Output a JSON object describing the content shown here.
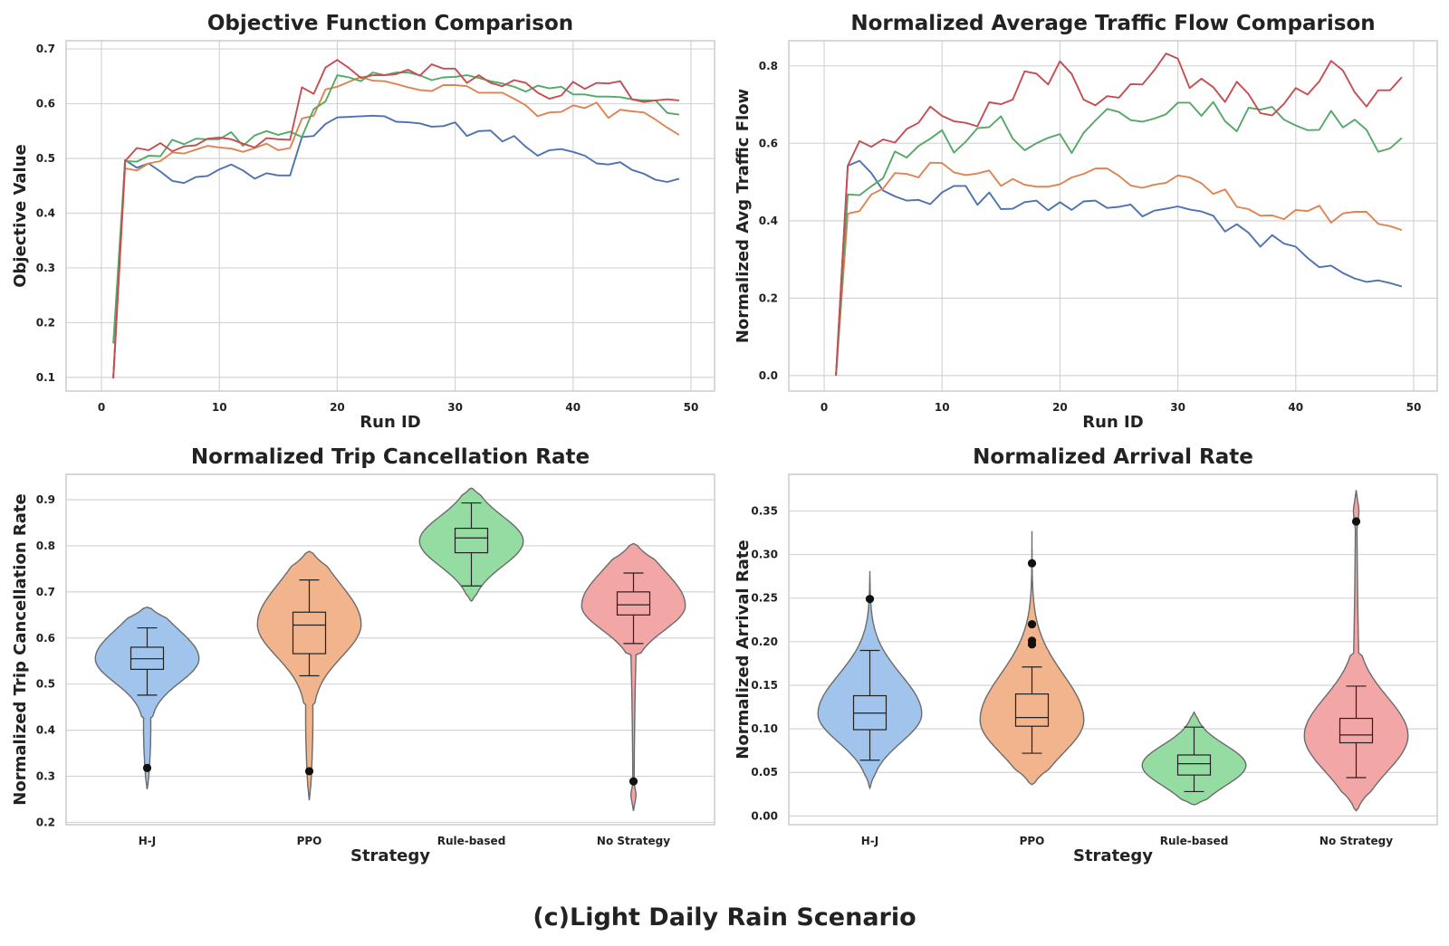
{
  "figure_caption": "(c)Light Daily Rain Scenario",
  "colors": {
    "line": [
      "#4c72b0",
      "#dd8452",
      "#55a868",
      "#c44e52"
    ],
    "violin_fill": [
      "#a1c4ec",
      "#f2b48c",
      "#95dca3",
      "#f3a6a6"
    ],
    "violin_edge": "#6b6b6b",
    "box": "#222222",
    "outlier": "#111111"
  },
  "chart_data": [
    {
      "type": "line",
      "title": "Objective Function Comparison",
      "xlabel": "Run ID",
      "ylabel": "Objective Value",
      "xlim": [
        -3,
        52
      ],
      "ylim": [
        0.075,
        0.715
      ],
      "xticks": [
        "0",
        "10",
        "20",
        "30",
        "40",
        "50"
      ],
      "yticks": [
        "0.1",
        "0.2",
        "0.3",
        "0.4",
        "0.5",
        "0.6",
        "0.7"
      ],
      "grid": true,
      "x_start": 1,
      "series": [
        {
          "values": [
            0.098,
            0.497,
            0.483,
            0.491,
            0.476,
            0.459,
            0.455,
            0.466,
            0.468,
            0.48,
            0.489,
            0.478,
            0.463,
            0.473,
            0.469,
            0.469,
            0.539,
            0.541,
            0.563,
            0.575,
            0.576,
            0.577,
            0.578,
            0.577,
            0.567,
            0.566,
            0.564,
            0.558,
            0.559,
            0.566,
            0.541,
            0.55,
            0.551,
            0.531,
            0.541,
            0.521,
            0.505,
            0.515,
            0.517,
            0.512,
            0.505,
            0.491,
            0.489,
            0.493,
            0.479,
            0.472,
            0.461,
            0.457,
            0.463
          ]
        },
        {
          "values": [
            0.1,
            0.482,
            0.478,
            0.491,
            0.495,
            0.511,
            0.509,
            0.516,
            0.523,
            0.52,
            0.518,
            0.512,
            0.519,
            0.527,
            0.515,
            0.519,
            0.573,
            0.578,
            0.626,
            0.631,
            0.64,
            0.649,
            0.642,
            0.641,
            0.636,
            0.63,
            0.625,
            0.623,
            0.634,
            0.634,
            0.632,
            0.62,
            0.62,
            0.62,
            0.609,
            0.597,
            0.577,
            0.584,
            0.585,
            0.597,
            0.592,
            0.602,
            0.574,
            0.589,
            0.586,
            0.584,
            0.571,
            0.556,
            0.543
          ]
        },
        {
          "values": [
            0.162,
            0.495,
            0.494,
            0.505,
            0.504,
            0.534,
            0.526,
            0.536,
            0.535,
            0.535,
            0.548,
            0.523,
            0.542,
            0.55,
            0.543,
            0.549,
            0.539,
            0.59,
            0.604,
            0.652,
            0.648,
            0.641,
            0.657,
            0.652,
            0.657,
            0.657,
            0.652,
            0.643,
            0.648,
            0.649,
            0.652,
            0.647,
            0.641,
            0.637,
            0.631,
            0.622,
            0.633,
            0.628,
            0.631,
            0.617,
            0.617,
            0.613,
            0.613,
            0.612,
            0.608,
            0.606,
            0.606,
            0.583,
            0.58
          ]
        },
        {
          "values": [
            0.098,
            0.495,
            0.519,
            0.515,
            0.528,
            0.513,
            0.522,
            0.524,
            0.536,
            0.538,
            0.535,
            0.527,
            0.52,
            0.537,
            0.535,
            0.534,
            0.63,
            0.618,
            0.666,
            0.68,
            0.665,
            0.647,
            0.652,
            0.652,
            0.654,
            0.662,
            0.651,
            0.672,
            0.664,
            0.664,
            0.638,
            0.652,
            0.638,
            0.632,
            0.643,
            0.638,
            0.62,
            0.609,
            0.615,
            0.64,
            0.627,
            0.638,
            0.637,
            0.641,
            0.608,
            0.603,
            0.606,
            0.608,
            0.606
          ]
        }
      ]
    },
    {
      "type": "line",
      "title": "Normalized Average Traffic Flow Comparison",
      "xlabel": "Run ID",
      "ylabel": "Normalized Avg Traffic Flow",
      "xlim": [
        -3,
        52
      ],
      "ylim": [
        -0.04,
        0.865
      ],
      "xticks": [
        "0",
        "10",
        "20",
        "30",
        "40",
        "50"
      ],
      "yticks": [
        "0.0",
        "0.2",
        "0.4",
        "0.6",
        "0.8"
      ],
      "grid": true,
      "x_start": 1,
      "series": [
        {
          "values": [
            0.0,
            0.542,
            0.555,
            0.523,
            0.478,
            0.463,
            0.452,
            0.454,
            0.443,
            0.473,
            0.49,
            0.49,
            0.441,
            0.473,
            0.43,
            0.431,
            0.448,
            0.452,
            0.427,
            0.448,
            0.428,
            0.45,
            0.452,
            0.433,
            0.436,
            0.442,
            0.411,
            0.426,
            0.431,
            0.437,
            0.429,
            0.424,
            0.413,
            0.372,
            0.391,
            0.369,
            0.333,
            0.363,
            0.341,
            0.333,
            0.304,
            0.28,
            0.284,
            0.265,
            0.251,
            0.242,
            0.246,
            0.239,
            0.23
          ]
        },
        {
          "values": [
            0.0,
            0.418,
            0.425,
            0.468,
            0.483,
            0.523,
            0.521,
            0.512,
            0.55,
            0.549,
            0.525,
            0.518,
            0.522,
            0.53,
            0.49,
            0.508,
            0.493,
            0.488,
            0.488,
            0.494,
            0.512,
            0.521,
            0.535,
            0.535,
            0.516,
            0.491,
            0.485,
            0.493,
            0.498,
            0.517,
            0.512,
            0.497,
            0.469,
            0.481,
            0.436,
            0.43,
            0.413,
            0.414,
            0.404,
            0.428,
            0.425,
            0.439,
            0.395,
            0.419,
            0.423,
            0.423,
            0.392,
            0.386,
            0.376
          ]
        },
        {
          "values": [
            0.0,
            0.468,
            0.466,
            0.489,
            0.51,
            0.579,
            0.563,
            0.593,
            0.612,
            0.634,
            0.576,
            0.604,
            0.639,
            0.642,
            0.67,
            0.612,
            0.582,
            0.6,
            0.614,
            0.624,
            0.575,
            0.627,
            0.659,
            0.689,
            0.681,
            0.66,
            0.656,
            0.664,
            0.675,
            0.705,
            0.705,
            0.671,
            0.707,
            0.657,
            0.631,
            0.692,
            0.687,
            0.694,
            0.661,
            0.646,
            0.634,
            0.635,
            0.684,
            0.641,
            0.661,
            0.635,
            0.578,
            0.587,
            0.614
          ]
        },
        {
          "values": [
            0.0,
            0.542,
            0.606,
            0.591,
            0.61,
            0.602,
            0.637,
            0.653,
            0.695,
            0.671,
            0.657,
            0.653,
            0.644,
            0.706,
            0.701,
            0.713,
            0.786,
            0.78,
            0.752,
            0.812,
            0.779,
            0.713,
            0.698,
            0.722,
            0.718,
            0.753,
            0.752,
            0.789,
            0.832,
            0.819,
            0.743,
            0.767,
            0.745,
            0.707,
            0.759,
            0.727,
            0.678,
            0.672,
            0.702,
            0.743,
            0.726,
            0.76,
            0.813,
            0.788,
            0.732,
            0.695,
            0.737,
            0.737,
            0.771
          ]
        }
      ]
    },
    {
      "type": "violin",
      "title": "Normalized Trip Cancellation Rate",
      "xlabel": "Strategy",
      "ylabel": "Normalized Trip Cancellation Rate",
      "ylim": [
        0.195,
        0.955
      ],
      "yticks": [
        "0.2",
        "0.3",
        "0.4",
        "0.5",
        "0.6",
        "0.7",
        "0.8",
        "0.9"
      ],
      "categories": [
        "H-J",
        "PPO",
        "Rule-based",
        "No Strategy"
      ],
      "grid": true,
      "violins": [
        {
          "min": 0.272,
          "max": 0.667,
          "mode": 0.555,
          "width": 0.82,
          "profile": "tail-low"
        },
        {
          "min": 0.248,
          "max": 0.788,
          "mode": 0.63,
          "width": 0.82,
          "profile": "tail-low"
        },
        {
          "min": 0.68,
          "max": 0.925,
          "mode": 0.81,
          "width": 0.82,
          "profile": "compact"
        },
        {
          "min": 0.225,
          "max": 0.805,
          "mode": 0.67,
          "width": 0.82,
          "profile": "long-tail-low"
        }
      ],
      "boxes": [
        {
          "whisker_low": 0.476,
          "q1": 0.532,
          "median": 0.555,
          "q3": 0.58,
          "whisker_high": 0.622,
          "outliers": [
            0.318
          ]
        },
        {
          "whisker_low": 0.518,
          "q1": 0.566,
          "median": 0.628,
          "q3": 0.656,
          "whisker_high": 0.726,
          "outliers": [
            0.311
          ]
        },
        {
          "whisker_low": 0.713,
          "q1": 0.785,
          "median": 0.817,
          "q3": 0.838,
          "whisker_high": 0.893,
          "outliers": []
        },
        {
          "whisker_low": 0.588,
          "q1": 0.65,
          "median": 0.672,
          "q3": 0.7,
          "whisker_high": 0.741,
          "outliers": [
            0.289
          ]
        }
      ]
    },
    {
      "type": "violin",
      "title": "Normalized Arrival Rate",
      "xlabel": "Strategy",
      "ylabel": "Normalized Arrival Rate",
      "ylim": [
        -0.01,
        0.392
      ],
      "yticks": [
        "0.00",
        "0.05",
        "0.10",
        "0.15",
        "0.20",
        "0.25",
        "0.30",
        "0.35"
      ],
      "categories": [
        "H-J",
        "PPO",
        "Rule-based",
        "No Strategy"
      ],
      "grid": true,
      "violins": [
        {
          "min": 0.032,
          "max": 0.281,
          "mode": 0.117,
          "width": 0.82,
          "profile": "tail-high"
        },
        {
          "min": 0.036,
          "max": 0.327,
          "mode": 0.11,
          "width": 0.82,
          "profile": "tail-high"
        },
        {
          "min": 0.013,
          "max": 0.119,
          "mode": 0.058,
          "width": 0.82,
          "profile": "compact"
        },
        {
          "min": 0.006,
          "max": 0.374,
          "mode": 0.092,
          "width": 0.82,
          "profile": "long-tail-high"
        }
      ],
      "boxes": [
        {
          "whisker_low": 0.064,
          "q1": 0.099,
          "median": 0.118,
          "q3": 0.138,
          "whisker_high": 0.19,
          "outliers": [
            0.249
          ]
        },
        {
          "whisker_low": 0.072,
          "q1": 0.103,
          "median": 0.113,
          "q3": 0.14,
          "whisker_high": 0.171,
          "outliers": [
            0.197,
            0.201,
            0.22,
            0.29
          ]
        },
        {
          "whisker_low": 0.028,
          "q1": 0.047,
          "median": 0.06,
          "q3": 0.07,
          "whisker_high": 0.102,
          "outliers": []
        },
        {
          "whisker_low": 0.044,
          "q1": 0.084,
          "median": 0.093,
          "q3": 0.112,
          "whisker_high": 0.149,
          "outliers": [
            0.338
          ]
        }
      ]
    }
  ]
}
